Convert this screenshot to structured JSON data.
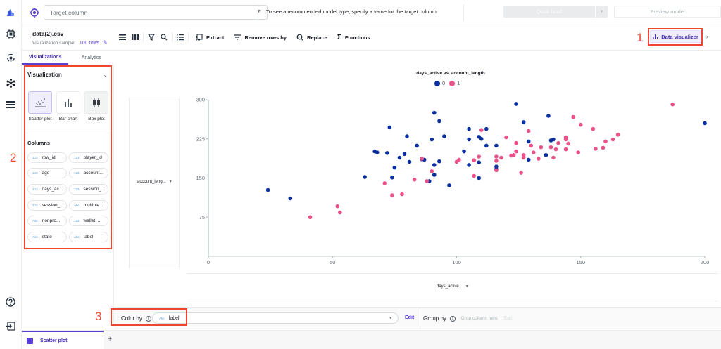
{
  "header": {
    "target_placeholder": "Target column",
    "hint": "To see a recommended model type, specify a value for the target column.",
    "quick_build_label": "Quick build",
    "preview_model_label": "Preview model"
  },
  "file": {
    "name": "data(2).csv",
    "sample_label": "Visualization sample:",
    "sample_rows": "100 rows"
  },
  "toolbar": {
    "extract_label": "Extract",
    "remove_rows_label": "Remove rows by",
    "replace_label": "Replace",
    "functions_label": "Functions",
    "data_visualizer_label": "Data visualizer"
  },
  "tabs": [
    {
      "label": "Visualizations",
      "active": true
    },
    {
      "label": "Analytics",
      "active": false
    }
  ],
  "visualization_panel": {
    "title": "Visualization",
    "types": [
      {
        "label": "Scatter plot",
        "selected": true
      },
      {
        "label": "Bar chart",
        "selected": false
      },
      {
        "label": "Box plot",
        "selected": false
      }
    ],
    "columns_title": "Columns",
    "columns": [
      {
        "name": "row_id",
        "type": "123"
      },
      {
        "name": "player_id",
        "type": "123"
      },
      {
        "name": "age",
        "type": "123"
      },
      {
        "name": "account...",
        "type": "123"
      },
      {
        "name": "days_ac...",
        "type": "123"
      },
      {
        "name": "session_...",
        "type": "123"
      },
      {
        "name": "session_...",
        "type": "123"
      },
      {
        "name": "multiple...",
        "type": "Abc"
      },
      {
        "name": "nonpro...",
        "type": "Abc"
      },
      {
        "name": "wallet_...",
        "type": "123"
      },
      {
        "name": "state",
        "type": "Abc"
      },
      {
        "name": "label",
        "type": "Abc"
      }
    ]
  },
  "annotations": [
    "1",
    "2",
    "3"
  ],
  "axes": {
    "y_select": "account_leng...",
    "x_select": "days_active..."
  },
  "color_by": {
    "label": "Color by",
    "type": "Abc",
    "value": "label",
    "edit": "Edit"
  },
  "group_by": {
    "label": "Group by",
    "placeholder": "Drop column here",
    "edit": "Edit"
  },
  "bottom_tabs": [
    {
      "label": "Scatter plot"
    }
  ],
  "colors": {
    "class_0": "#0a2f9e",
    "class_1": "#e9538a",
    "accent": "#5a3fd4",
    "annotation": "#ef4631"
  },
  "chart_data": {
    "type": "scatter",
    "title": "days_active vs. account_length",
    "xlabel": "days_active",
    "ylabel": "account_length",
    "xlim": [
      0,
      200
    ],
    "ylim": [
      0,
      300
    ],
    "xticks": [
      0,
      50,
      100,
      150,
      200
    ],
    "yticks": [
      75,
      150,
      225,
      300
    ],
    "legend": [
      "0",
      "1"
    ],
    "legend_position": "top",
    "grid": false,
    "series": [
      {
        "name": "0",
        "color": "#0a2f9e",
        "points": [
          [
            24,
            127
          ],
          [
            33,
            111
          ],
          [
            63,
            152
          ],
          [
            67,
            201
          ],
          [
            68,
            199
          ],
          [
            73,
            247
          ],
          [
            72,
            198
          ],
          [
            75,
            170
          ],
          [
            74,
            151
          ],
          [
            77,
            189
          ],
          [
            79,
            196
          ],
          [
            80,
            230
          ],
          [
            81,
            181
          ],
          [
            84,
            212
          ],
          [
            86,
            186
          ],
          [
            87,
            185
          ],
          [
            90,
            224
          ],
          [
            91,
            275
          ],
          [
            93,
            259
          ],
          [
            95,
            230
          ],
          [
            91,
            175
          ],
          [
            93,
            182
          ],
          [
            91,
            156
          ],
          [
            89,
            144
          ],
          [
            97,
            136
          ],
          [
            124,
            292
          ],
          [
            137,
            269
          ],
          [
            127,
            257
          ],
          [
            105,
            244
          ],
          [
            112,
            244
          ],
          [
            109,
            229
          ],
          [
            110,
            225
          ],
          [
            105,
            224
          ],
          [
            129,
            220
          ],
          [
            138,
            222
          ],
          [
            139,
            224
          ],
          [
            112,
            212
          ],
          [
            116,
            212
          ],
          [
            103,
            201
          ],
          [
            136,
            194
          ],
          [
            129,
            185
          ],
          [
            109,
            180
          ],
          [
            105,
            175
          ],
          [
            116,
            172
          ],
          [
            116,
            167
          ],
          [
            109,
            150
          ],
          [
            200,
            255
          ]
        ]
      },
      {
        "name": "1",
        "color": "#e9538a",
        "points": [
          [
            41,
            75
          ],
          [
            52,
            96
          ],
          [
            53,
            84
          ],
          [
            71,
            140
          ],
          [
            74,
            117
          ],
          [
            78,
            119
          ],
          [
            83,
            147
          ],
          [
            86,
            187
          ],
          [
            90,
            163
          ],
          [
            88,
            144
          ],
          [
            147,
            267
          ],
          [
            150,
            252
          ],
          [
            110,
            242
          ],
          [
            129,
            240
          ],
          [
            120,
            228
          ],
          [
            124,
            217
          ],
          [
            144,
            228
          ],
          [
            144,
            224
          ],
          [
            141,
            217
          ],
          [
            145,
            216
          ],
          [
            130,
            212
          ],
          [
            134,
            209
          ],
          [
            138,
            209
          ],
          [
            144,
            205
          ],
          [
            140,
            205
          ],
          [
            124,
            201
          ],
          [
            131,
            199
          ],
          [
            149,
            199
          ],
          [
            123,
            194
          ],
          [
            122,
            193
          ],
          [
            127,
            194
          ],
          [
            127,
            189
          ],
          [
            109,
            191
          ],
          [
            116,
            191
          ],
          [
            118,
            189
          ],
          [
            133,
            187
          ],
          [
            139,
            189
          ],
          [
            116,
            183
          ],
          [
            107,
            184
          ],
          [
            101,
            185
          ],
          [
            100,
            181
          ],
          [
            116,
            165
          ],
          [
            126,
            160
          ],
          [
            107,
            154
          ],
          [
            187,
            291
          ],
          [
            155,
            244
          ],
          [
            165,
            233
          ],
          [
            163,
            224
          ],
          [
            160,
            220
          ],
          [
            159,
            208
          ],
          [
            156,
            206
          ]
        ]
      }
    ]
  }
}
